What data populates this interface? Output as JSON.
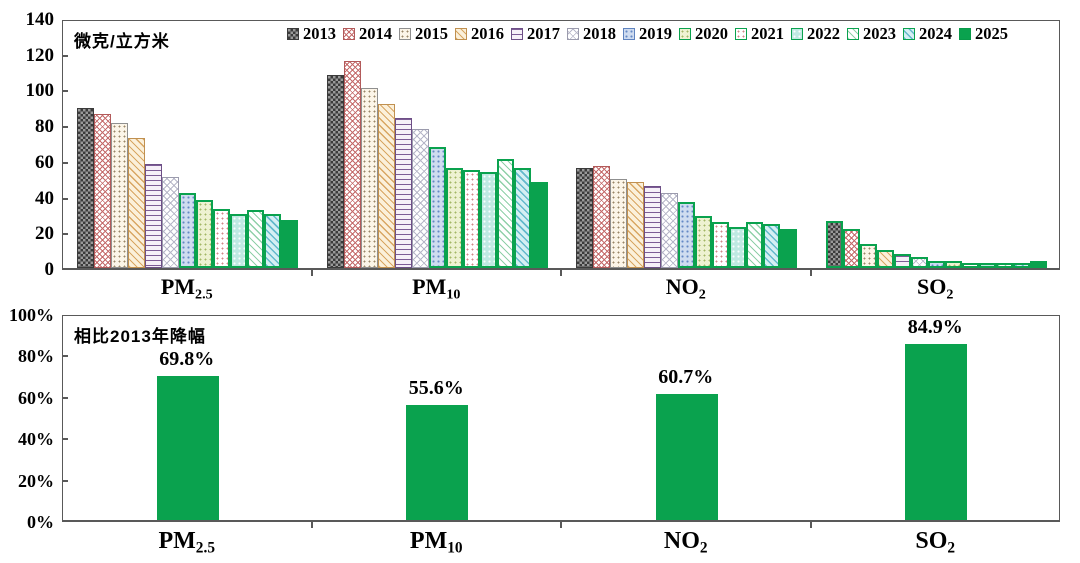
{
  "colors": {
    "accent_green": "#0aa24e",
    "axis_gray": "#595959"
  },
  "chart_data": [
    {
      "type": "bar",
      "unit_label": "微克/立方米",
      "ylim": [
        0,
        140
      ],
      "y_ticks": [
        "140",
        "120",
        "100",
        "80",
        "60",
        "40",
        "20",
        "0"
      ],
      "legend_position": "top-inside",
      "grid": false,
      "years": [
        "2013",
        "2014",
        "2015",
        "2016",
        "2017",
        "2018",
        "2019",
        "2020",
        "2021",
        "2022",
        "2023",
        "2024",
        "2025"
      ],
      "groups": [
        {
          "label": "PM₂.₅",
          "label_base": "PM",
          "label_sub": "2.5",
          "values": [
            89.5,
            86,
            81,
            73,
            58,
            51,
            42,
            38,
            33,
            30,
            32.5,
            30.5,
            27
          ]
        },
        {
          "label": "PM₁₀",
          "label_base": "PM",
          "label_sub": "10",
          "values": [
            108,
            116,
            101,
            92,
            84,
            78,
            68,
            56,
            55,
            54,
            61,
            56,
            48
          ]
        },
        {
          "label": "NO₂",
          "label_base": "NO",
          "label_sub": "2",
          "values": [
            56,
            57,
            50,
            48,
            46,
            42,
            37,
            29,
            26,
            23,
            26,
            24.5,
            22
          ]
        },
        {
          "label": "SO₂",
          "label_base": "SO",
          "label_sub": "2",
          "values": [
            26.5,
            22,
            13.5,
            10,
            8,
            6,
            4,
            4,
            3,
            3,
            3,
            3,
            4
          ]
        }
      ]
    },
    {
      "type": "bar",
      "title": "相比2013年降幅",
      "ylim": [
        0,
        100
      ],
      "y_ticks": [
        "100%",
        "80%",
        "60%",
        "40%",
        "20%",
        "0%"
      ],
      "grid": false,
      "bar_color": "#0aa24e",
      "groups": [
        {
          "label": "PM₂.₅",
          "label_base": "PM",
          "label_sub": "2.5",
          "value": 69.8,
          "value_label": "69.8%"
        },
        {
          "label": "PM₁₀",
          "label_base": "PM",
          "label_sub": "10",
          "value": 55.6,
          "value_label": "55.6%"
        },
        {
          "label": "NO₂",
          "label_base": "NO",
          "label_sub": "2",
          "value": 60.7,
          "value_label": "60.7%"
        },
        {
          "label": "SO₂",
          "label_base": "SO",
          "label_sub": "2",
          "value": 84.9,
          "value_label": "84.9%"
        }
      ]
    }
  ]
}
